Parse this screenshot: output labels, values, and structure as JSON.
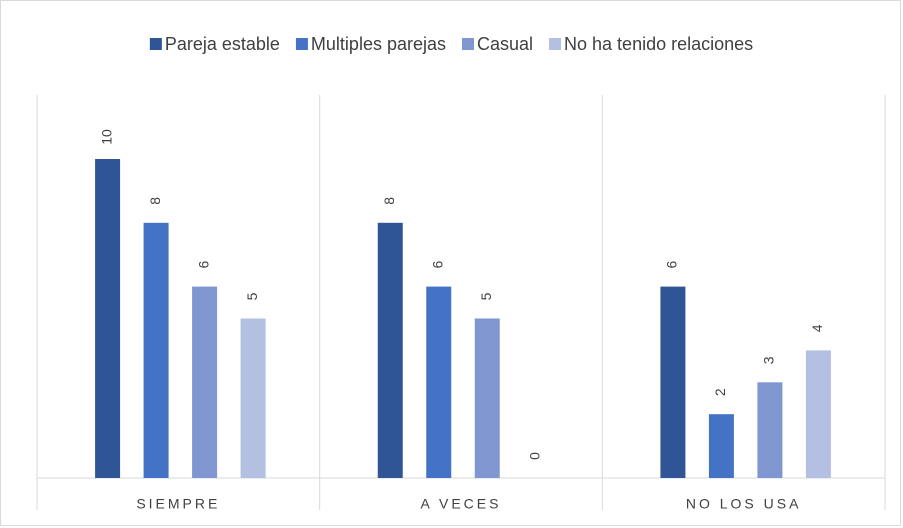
{
  "chart_data": {
    "type": "bar",
    "categories": [
      "SIEMPRE",
      "A VECES",
      "NO LOS USA"
    ],
    "series": [
      {
        "name": "Pareja estable",
        "color": "#2f5597",
        "values": [
          10,
          8,
          6
        ]
      },
      {
        "name": "Multiples parejas",
        "color": "#4472c4",
        "values": [
          8,
          6,
          2
        ]
      },
      {
        "name": "Casual",
        "color": "#7f96d0",
        "values": [
          6,
          5,
          3
        ]
      },
      {
        "name": "No ha tenido relaciones",
        "color": "#b4c0e2",
        "values": [
          5,
          0,
          4
        ]
      }
    ],
    "legend": "top"
  }
}
